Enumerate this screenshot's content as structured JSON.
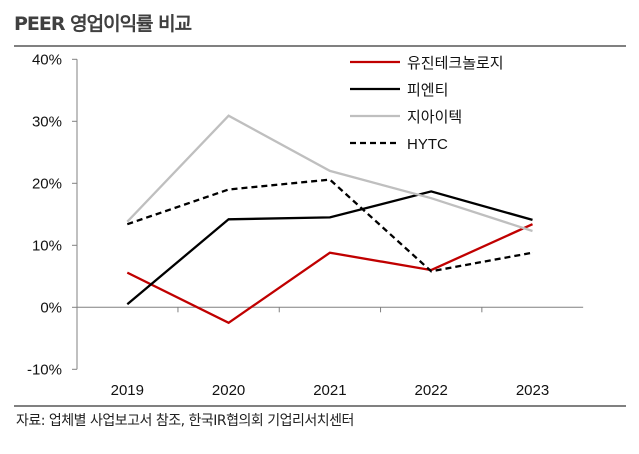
{
  "chart_data": {
    "type": "line",
    "title": "PEER 영업이익률 비교",
    "xlabel": "",
    "ylabel": "",
    "categories": [
      "2019",
      "2020",
      "2021",
      "2022",
      "2023"
    ],
    "yticks": [
      "-10%",
      "0%",
      "10%",
      "20%",
      "30%",
      "40%"
    ],
    "ylim": [
      -10,
      40
    ],
    "grid": false,
    "legend_position": "top-right",
    "series": [
      {
        "name": "유진테크놀로지",
        "color": "#C00000",
        "dash": false,
        "values": [
          5.6,
          -2.5,
          8.8,
          6.0,
          13.4
        ]
      },
      {
        "name": "피엔티",
        "color": "#000000",
        "dash": false,
        "values": [
          0.5,
          14.2,
          14.5,
          18.7,
          14.1
        ]
      },
      {
        "name": "지아이텍",
        "color": "#BFBFBF",
        "dash": false,
        "values": [
          13.8,
          30.9,
          22.0,
          17.6,
          12.3
        ]
      },
      {
        "name": "HYTC",
        "color": "#000000",
        "dash": true,
        "values": [
          13.4,
          19.0,
          20.6,
          5.8,
          8.8
        ]
      }
    ],
    "source": "자료: 업체별 사업보고서 참조, 한국IR협의회 기업리서치센터"
  }
}
